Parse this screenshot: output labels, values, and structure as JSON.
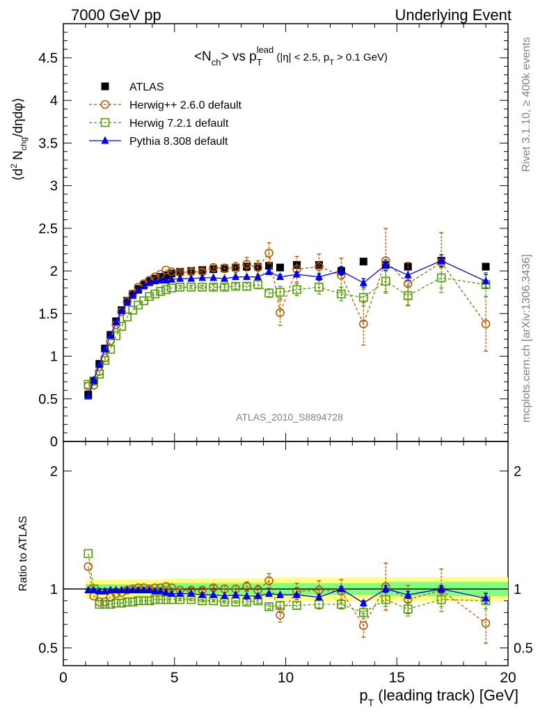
{
  "header": {
    "left": "7000 GeV pp",
    "right": "Underlying Event"
  },
  "side": {
    "rivet": "Rivet 3.1.10, ≥ 400k events",
    "source": "mcplots.cern.ch [arXiv:1306.3436]"
  },
  "plot_label": "ATLAS_2010_S8894728",
  "chart_data": [
    {
      "type": "scatter",
      "title": "<N_ch> vs p_T^lead (|η| < 2.5, p_T > 0.1 GeV)",
      "ylabel": "⟨d² N_chg/dηdφ⟩",
      "xlabel": "p_T (leading track) [GeV]",
      "xlim": [
        0,
        20
      ],
      "ylim": [
        0,
        4.9
      ],
      "yticks": [
        0,
        0.5,
        1,
        1.5,
        2,
        2.5,
        3,
        3.5,
        4,
        4.5
      ],
      "ytick_labels": [
        "0",
        "0.5",
        "1",
        "1.5",
        "2",
        "2.5",
        "3",
        "3.5",
        "4",
        "4.5"
      ],
      "x": [
        1.12,
        1.37,
        1.62,
        1.87,
        2.12,
        2.37,
        2.62,
        2.87,
        3.12,
        3.37,
        3.62,
        3.87,
        4.12,
        4.37,
        4.62,
        4.87,
        5.25,
        5.75,
        6.25,
        6.75,
        7.25,
        7.75,
        8.25,
        8.75,
        9.25,
        9.75,
        10.5,
        11.5,
        12.5,
        13.5,
        14.5,
        15.5,
        17.0,
        19.0
      ],
      "series": [
        {
          "name": "ATLAS",
          "color": "#000000",
          "marker": "square-filled",
          "values": [
            0.55,
            0.71,
            0.91,
            1.09,
            1.25,
            1.41,
            1.54,
            1.65,
            1.73,
            1.79,
            1.84,
            1.88,
            1.91,
            1.93,
            1.95,
            1.97,
            1.99,
            2.0,
            2.01,
            2.02,
            2.03,
            2.04,
            2.05,
            2.05,
            2.06,
            2.04,
            2.07,
            2.07,
            2.0,
            2.11,
            2.07,
            2.05,
            2.12,
            2.05
          ]
        },
        {
          "name": "Herwig++ 2.6.0 default",
          "color": "#b35900",
          "marker": "circle-open",
          "values": [
            0.65,
            0.66,
            0.82,
            0.98,
            1.18,
            1.37,
            1.52,
            1.64,
            1.73,
            1.81,
            1.85,
            1.89,
            1.93,
            1.96,
            2.01,
            1.99,
            1.98,
            1.99,
            1.99,
            2.04,
            2.03,
            2.04,
            2.08,
            2.04,
            2.21,
            1.51,
            2.02,
            2.05,
            1.95,
            1.38,
            2.12,
            1.85,
            2.1,
            1.38
          ],
          "err": [
            0,
            0,
            0,
            0,
            0,
            0,
            0,
            0,
            0,
            0,
            0,
            0,
            0,
            0,
            0,
            0,
            0.02,
            0.03,
            0.03,
            0.04,
            0.05,
            0.06,
            0.08,
            0.08,
            0.12,
            0.15,
            0.15,
            0.15,
            0.2,
            0.25,
            0.38,
            0.25,
            0.35,
            0.32
          ]
        },
        {
          "name": "Herwig 7.2.1 default",
          "color": "#4d9900",
          "marker": "square-open",
          "values": [
            0.67,
            0.71,
            0.79,
            0.95,
            1.08,
            1.24,
            1.35,
            1.46,
            1.54,
            1.6,
            1.65,
            1.7,
            1.73,
            1.76,
            1.78,
            1.8,
            1.81,
            1.81,
            1.81,
            1.81,
            1.81,
            1.82,
            1.82,
            1.84,
            1.74,
            1.75,
            1.78,
            1.81,
            1.73,
            1.69,
            1.88,
            1.71,
            1.92,
            1.84
          ],
          "err": [
            0,
            0,
            0,
            0,
            0,
            0,
            0,
            0,
            0,
            0,
            0,
            0,
            0,
            0,
            0,
            0,
            0.02,
            0.02,
            0.02,
            0.03,
            0.03,
            0.03,
            0.04,
            0.05,
            0.05,
            0.07,
            0.07,
            0.08,
            0.08,
            0.1,
            0.12,
            0.12,
            0.12,
            0.14
          ]
        },
        {
          "name": "Pythia 8.308 default",
          "color": "#0000e6",
          "marker": "triangle-filled",
          "values": [
            0.53,
            0.72,
            0.9,
            1.08,
            1.24,
            1.4,
            1.53,
            1.63,
            1.71,
            1.77,
            1.82,
            1.86,
            1.88,
            1.89,
            1.89,
            1.9,
            1.91,
            1.91,
            1.92,
            1.92,
            1.91,
            1.93,
            1.93,
            1.93,
            1.99,
            1.93,
            1.96,
            1.93,
            2.0,
            1.86,
            2.07,
            1.95,
            2.12,
            1.88
          ],
          "err": [
            0,
            0,
            0,
            0,
            0,
            0,
            0,
            0,
            0,
            0,
            0,
            0,
            0,
            0,
            0,
            0,
            0,
            0,
            0,
            0,
            0,
            0,
            0,
            0,
            0.03,
            0.03,
            0.03,
            0.04,
            0.05,
            0.05,
            0.06,
            0.06,
            0.07,
            0.08
          ]
        }
      ],
      "legend": "top-left"
    },
    {
      "type": "scatter",
      "title": "",
      "ylabel": "Ratio to ATLAS",
      "xlabel": "p_T (leading track) [GeV]",
      "xlim": [
        0,
        20
      ],
      "ylim": [
        0.35,
        2.25
      ],
      "yticks": [
        0.5,
        1,
        2
      ],
      "ytick_labels": [
        "0.5",
        "1",
        "2"
      ],
      "xticks": [
        0,
        5,
        10,
        15,
        20
      ],
      "xtick_labels": [
        "0",
        "5",
        "10",
        "15",
        "20"
      ],
      "x": [
        1.12,
        1.37,
        1.62,
        1.87,
        2.12,
        2.37,
        2.62,
        2.87,
        3.12,
        3.37,
        3.62,
        3.87,
        4.12,
        4.37,
        4.62,
        4.87,
        5.25,
        5.75,
        6.25,
        6.75,
        7.25,
        7.75,
        8.25,
        8.75,
        9.25,
        9.75,
        10.5,
        11.5,
        12.5,
        13.5,
        14.5,
        15.5,
        17.0,
        19.0
      ],
      "band_outer": {
        "color": "#ffff80",
        "edges": [
          1.0,
          4.5,
          9.5,
          14.5,
          20.0
        ],
        "halfwidth": [
          0.08,
          0.09,
          0.1,
          0.1
        ]
      },
      "band_inner": {
        "color": "#80ff80",
        "edges": [
          1.0,
          4.5,
          9.5,
          14.5,
          20.0
        ],
        "halfwidth": [
          0.04,
          0.05,
          0.05,
          0.06
        ]
      },
      "series": [
        {
          "name": "Herwig++ 2.6.0 default",
          "color": "#b35900",
          "marker": "circle-open",
          "values": [
            1.19,
            0.94,
            0.89,
            0.89,
            0.93,
            0.96,
            0.97,
            0.99,
            1.0,
            1.01,
            1.01,
            1.0,
            1.01,
            1.01,
            1.02,
            1.01,
            0.99,
            0.99,
            0.99,
            1.01,
            1.0,
            1.0,
            1.02,
            0.99,
            1.07,
            0.78,
            0.98,
            0.99,
            0.98,
            0.69,
            1.02,
            0.91,
            0.99,
            0.71
          ],
          "err": [
            0,
            0,
            0,
            0,
            0,
            0,
            0,
            0,
            0,
            0,
            0,
            0,
            0,
            0,
            0,
            0,
            0.01,
            0.02,
            0.02,
            0.02,
            0.03,
            0.03,
            0.04,
            0.04,
            0.06,
            0.06,
            0.07,
            0.08,
            0.1,
            0.1,
            0.2,
            0.12,
            0.18,
            0.17
          ]
        },
        {
          "name": "Herwig 7.2.1 default",
          "color": "#4d9900",
          "marker": "square-open",
          "values": [
            1.3,
            1.0,
            0.87,
            0.87,
            0.87,
            0.88,
            0.88,
            0.89,
            0.89,
            0.9,
            0.9,
            0.9,
            0.91,
            0.91,
            0.91,
            0.91,
            0.91,
            0.91,
            0.9,
            0.9,
            0.89,
            0.89,
            0.89,
            0.9,
            0.85,
            0.86,
            0.86,
            0.87,
            0.87,
            0.8,
            0.91,
            0.83,
            0.91,
            0.9
          ],
          "err": [
            0,
            0,
            0,
            0,
            0,
            0,
            0,
            0,
            0,
            0,
            0,
            0,
            0,
            0,
            0,
            0,
            0.01,
            0.01,
            0.01,
            0.01,
            0.01,
            0.01,
            0.02,
            0.02,
            0.02,
            0.03,
            0.03,
            0.04,
            0.04,
            0.05,
            0.06,
            0.06,
            0.06,
            0.07
          ]
        },
        {
          "name": "Pythia 8.308 default",
          "color": "#0000e6",
          "marker": "triangle-filled",
          "values": [
            0.99,
            0.99,
            0.98,
            0.98,
            0.99,
            0.99,
            0.99,
            0.99,
            0.99,
            0.99,
            0.99,
            0.99,
            0.98,
            0.98,
            0.97,
            0.96,
            0.96,
            0.96,
            0.95,
            0.95,
            0.94,
            0.95,
            0.94,
            0.94,
            0.96,
            0.95,
            0.95,
            0.93,
            1.0,
            0.88,
            1.0,
            0.95,
            1.0,
            0.92
          ],
          "err": [
            0,
            0,
            0,
            0,
            0,
            0,
            0,
            0,
            0,
            0,
            0,
            0,
            0,
            0,
            0,
            0,
            0,
            0,
            0,
            0,
            0,
            0,
            0,
            0,
            0.01,
            0.01,
            0.01,
            0.02,
            0.02,
            0.02,
            0.03,
            0.03,
            0.03,
            0.04
          ]
        }
      ]
    }
  ]
}
